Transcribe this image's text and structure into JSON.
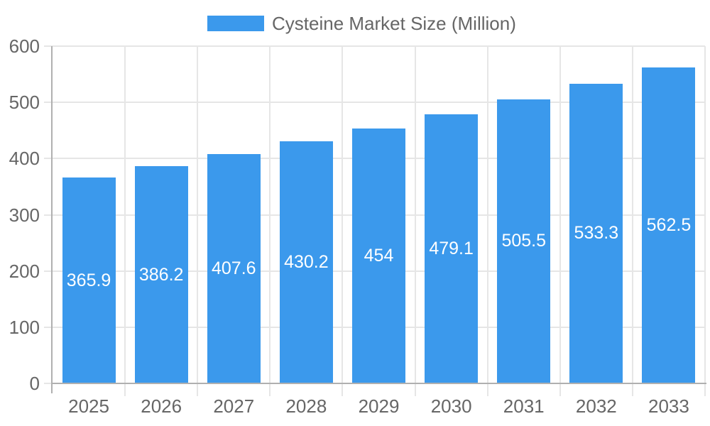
{
  "legend": {
    "label": "Cysteine Market Size (Million)"
  },
  "colors": {
    "bar": "#3B99EC",
    "grid": "#E6E6E6",
    "axis": "#B0B0B0",
    "tick_text": "#666666",
    "bar_label_text": "#FFFFFF",
    "background": "#FFFFFF"
  },
  "chart_data": {
    "type": "bar",
    "title": "Cysteine Market Size (Million)",
    "categories": [
      "2025",
      "2026",
      "2027",
      "2028",
      "2029",
      "2030",
      "2031",
      "2032",
      "2033"
    ],
    "values": [
      365.9,
      386.2,
      407.6,
      430.2,
      454,
      479.1,
      505.5,
      533.3,
      562.5
    ],
    "value_labels": [
      "365.9",
      "386.2",
      "407.6",
      "430.2",
      "454",
      "479.1",
      "505.5",
      "533.3",
      "562.5"
    ],
    "ytick_labels": [
      "0",
      "100",
      "200",
      "300",
      "400",
      "500",
      "600"
    ],
    "xlabel": "",
    "ylabel": "",
    "ylim": [
      0,
      600
    ],
    "ytick_step": 100,
    "grid": true,
    "legend_position": "top",
    "bar_label_position": "inside-center"
  }
}
